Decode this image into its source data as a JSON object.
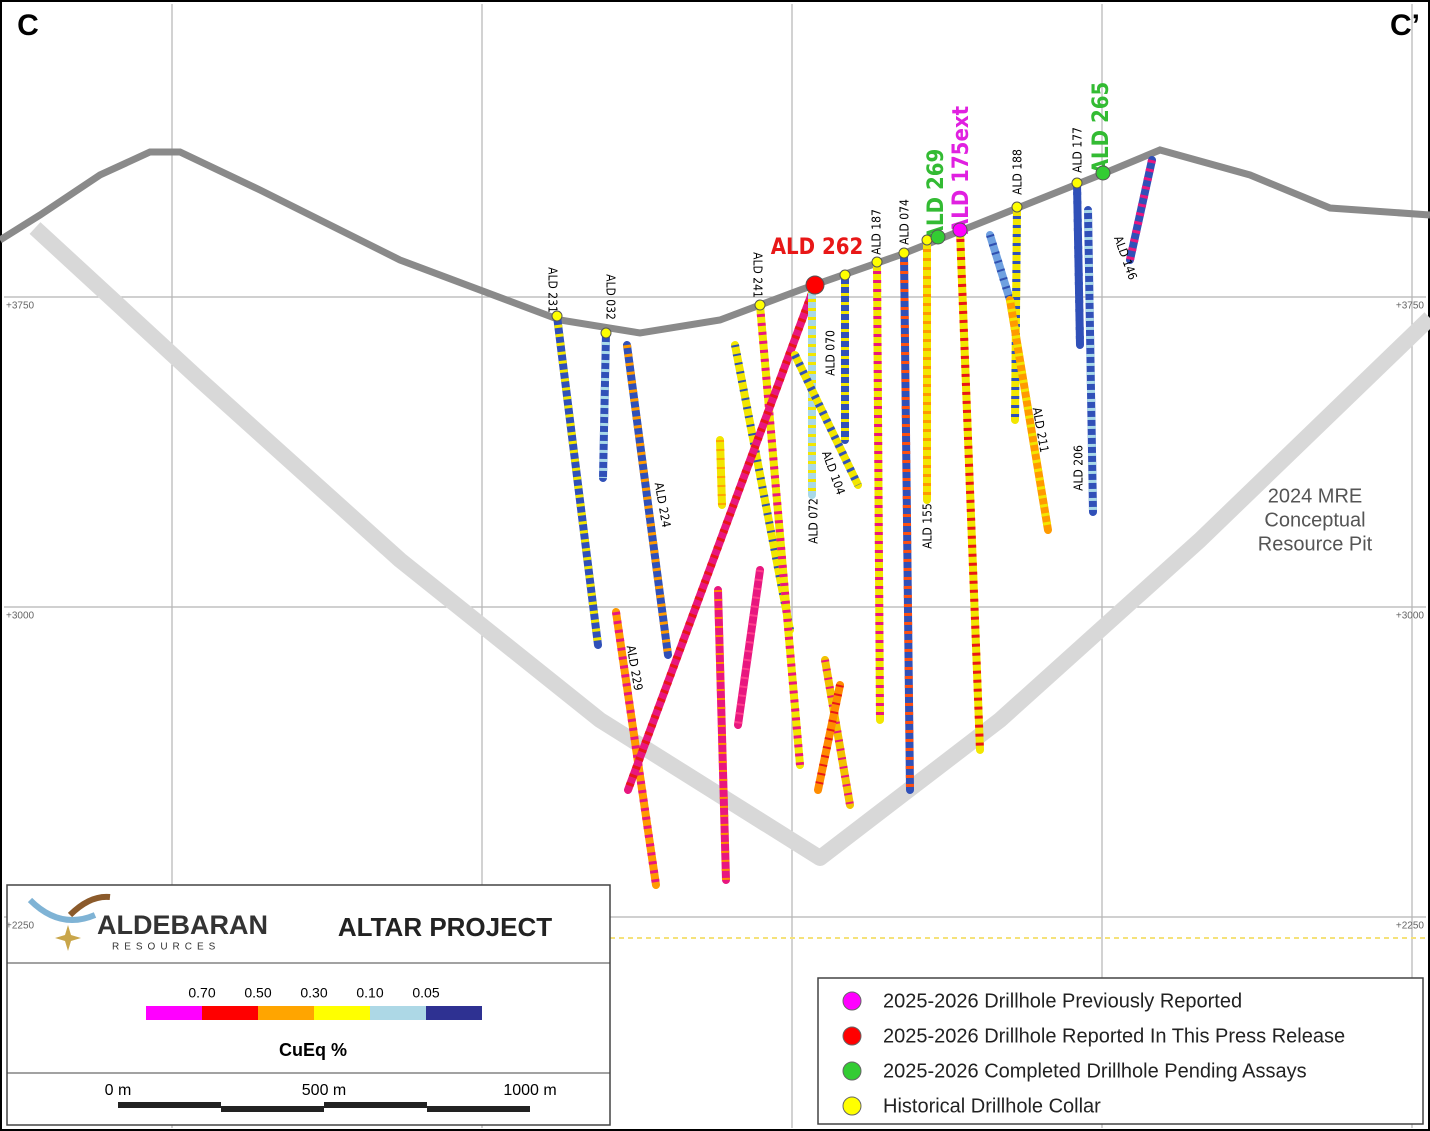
{
  "section_labels": {
    "left": "C",
    "right": "C’"
  },
  "elevations": [
    "+3750",
    "+3000",
    "+2250"
  ],
  "drillholes": [
    {
      "label": "ALD 231"
    },
    {
      "label": "ALD 032"
    },
    {
      "label": "ALD 224"
    },
    {
      "label": "ALD 229"
    },
    {
      "label": "ALD 241"
    },
    {
      "label": "ALD 262"
    },
    {
      "label": "ALD 070"
    },
    {
      "label": "ALD 072"
    },
    {
      "label": "ALD 104"
    },
    {
      "label": "ALD 187"
    },
    {
      "label": "ALD 074"
    },
    {
      "label": "ALD 155"
    },
    {
      "label": "ALD 269"
    },
    {
      "label": "ALD 175ext"
    },
    {
      "label": "ALD 188"
    },
    {
      "label": "ALD 211"
    },
    {
      "label": "ALD 177"
    },
    {
      "label": "ALD 206"
    },
    {
      "label": "ALD 265"
    },
    {
      "label": "ALD 146"
    }
  ],
  "pit_label": [
    "2024 MRE",
    "Conceptual",
    "Resource Pit"
  ],
  "logo": {
    "name": "ALDEBARAN",
    "tagline": "RESOURCES"
  },
  "project": "ALTAR PROJECT",
  "grade_scale": {
    "labels": [
      "0.70",
      "0.50",
      "0.30",
      "0.10",
      "0.05"
    ],
    "title": "CuEq %"
  },
  "scale_bar": {
    "labels": [
      "0 m",
      "500 m",
      "1000 m"
    ]
  },
  "legend": {
    "items": [
      {
        "label": "2025-2026 Drillhole Previously Reported",
        "color": "#ff00ff"
      },
      {
        "label": "2025-2026 Drillhole Reported In This Press Release",
        "color": "#ff0000"
      },
      {
        "label": "2025-2026 Completed Drillhole Pending Assays",
        "color": "#33cc33"
      },
      {
        "label": "Historical Drillhole Collar",
        "color": "#ffff00"
      }
    ]
  }
}
